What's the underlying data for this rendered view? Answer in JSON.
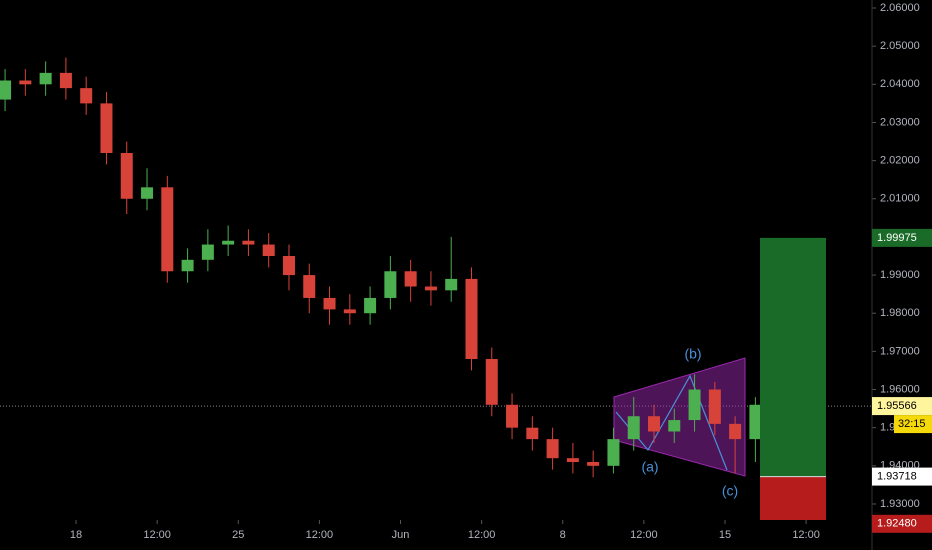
{
  "chart_data": {
    "type": "candlestick",
    "x": [
      0,
      1,
      2,
      3,
      4,
      5,
      6,
      7,
      8,
      9,
      10,
      11,
      12,
      13,
      14,
      15,
      16,
      17,
      18,
      19,
      20,
      21,
      22,
      23,
      24,
      25,
      26,
      27,
      28,
      29,
      30,
      31,
      32,
      33,
      34,
      35,
      36,
      37
    ],
    "open": [
      2.036,
      2.041,
      2.04,
      2.043,
      2.039,
      2.035,
      2.022,
      2.01,
      2.013,
      1.991,
      1.994,
      1.998,
      1.999,
      1.998,
      1.995,
      1.99,
      1.984,
      1.981,
      1.98,
      1.984,
      1.991,
      1.987,
      1.986,
      1.989,
      1.968,
      1.956,
      1.95,
      1.947,
      1.942,
      1.941,
      1.94,
      1.947,
      1.953,
      1.949,
      1.952,
      1.96,
      1.951,
      1.947
    ],
    "high": [
      2.044,
      2.044,
      2.046,
      2.047,
      2.042,
      2.038,
      2.025,
      2.018,
      2.016,
      1.997,
      2.002,
      2.003,
      2.002,
      2.001,
      1.998,
      1.993,
      1.987,
      1.985,
      1.987,
      1.995,
      1.994,
      1.991,
      2.0,
      1.992,
      1.971,
      1.959,
      1.953,
      1.95,
      1.946,
      1.944,
      1.95,
      1.958,
      1.956,
      1.955,
      1.964,
      1.962,
      1.953,
      1.958
    ],
    "low": [
      2.033,
      2.037,
      2.037,
      2.036,
      2.032,
      2.019,
      2.006,
      2.007,
      1.988,
      1.988,
      1.991,
      1.995,
      1.995,
      1.992,
      1.986,
      1.98,
      1.977,
      1.977,
      1.977,
      1.981,
      1.983,
      1.982,
      1.983,
      1.965,
      1.953,
      1.947,
      1.944,
      1.939,
      1.938,
      1.937,
      1.938,
      1.944,
      1.946,
      1.946,
      1.949,
      1.948,
      1.938,
      1.941
    ],
    "close": [
      2.041,
      2.04,
      2.043,
      2.039,
      2.035,
      2.022,
      2.01,
      2.013,
      1.991,
      1.994,
      1.998,
      1.999,
      1.998,
      1.995,
      1.99,
      1.984,
      1.981,
      1.98,
      1.984,
      1.991,
      1.987,
      1.986,
      1.989,
      1.968,
      1.956,
      1.95,
      1.947,
      1.942,
      1.941,
      1.94,
      1.947,
      1.953,
      1.949,
      1.952,
      1.96,
      1.951,
      1.947,
      1.956
    ],
    "up_color": "#4caf50",
    "down_color": "#d84339",
    "xlim": [
      -0.25,
      42.75
    ],
    "xticks": [
      {
        "value": 3.5,
        "label": "18"
      },
      {
        "value": 7.5,
        "label": "12:00"
      },
      {
        "value": 11.5,
        "label": "25"
      },
      {
        "value": 15.5,
        "label": "12:00"
      },
      {
        "value": 19.5,
        "label": "Jun"
      },
      {
        "value": 23.5,
        "label": "12:00"
      },
      {
        "value": 27.5,
        "label": "8"
      },
      {
        "value": 31.5,
        "label": "12:00"
      },
      {
        "value": 35.5,
        "label": "15"
      },
      {
        "value": 39.5,
        "label": "12:00"
      }
    ],
    "ylim": [
      1.9258,
      2.0621
    ],
    "yticks": [
      {
        "value": 2.06,
        "label": "2.06000"
      },
      {
        "value": 2.05,
        "label": "2.05000"
      },
      {
        "value": 2.04,
        "label": "2.04000"
      },
      {
        "value": 2.03,
        "label": "2.03000"
      },
      {
        "value": 2.02,
        "label": "2.02000"
      },
      {
        "value": 2.01,
        "label": "2.01000"
      },
      {
        "value": 2.0,
        "label": "2.00000"
      },
      {
        "value": 1.99,
        "label": "1.99000"
      },
      {
        "value": 1.98,
        "label": "1.98000"
      },
      {
        "value": 1.97,
        "label": "1.97000"
      },
      {
        "value": 1.96,
        "label": "1.96000"
      },
      {
        "value": 1.95,
        "label": "1.95000"
      },
      {
        "value": 1.94,
        "label": "1.94000"
      },
      {
        "value": 1.93,
        "label": "1.93000"
      }
    ],
    "grid": false,
    "last_price": {
      "value": 1.95566,
      "label": "1.95566"
    },
    "countdown": "32:15",
    "position": {
      "target": {
        "value": 1.99975,
        "label": "1.99975"
      },
      "entry": {
        "value": 1.93718,
        "label": "1.93718"
      },
      "stop": {
        "value": 1.9248,
        "label": "1.92480"
      }
    },
    "annotations": [
      "(a)",
      "(b)",
      "(c)"
    ]
  }
}
